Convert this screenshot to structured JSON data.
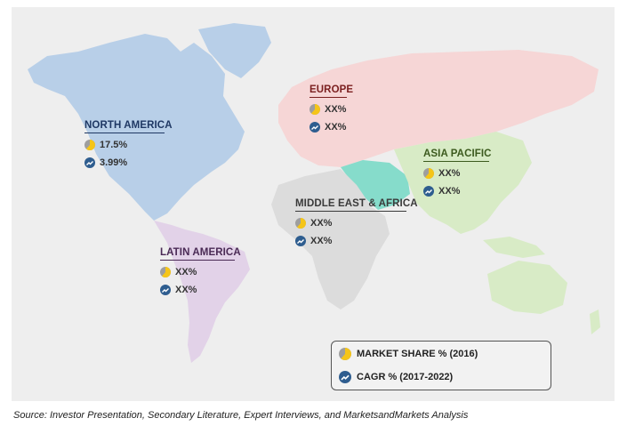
{
  "regions": [
    {
      "key": "north_america",
      "name": "NORTH AMERICA",
      "market_share": "17.5%",
      "cagr": "3.99%",
      "color": "#b8cfe8",
      "title_color": "#1f3864"
    },
    {
      "key": "europe",
      "name": "EUROPE",
      "market_share": "XX%",
      "cagr": "XX%",
      "color": "#f6d6d6",
      "title_color": "#7b1f1f"
    },
    {
      "key": "asia_pacific",
      "name": "ASIA PACIFIC",
      "market_share": "XX%",
      "cagr": "XX%",
      "color": "#d8ebc6",
      "title_color": "#3c5a1e"
    },
    {
      "key": "middle_east_africa",
      "name": "MIDDLE EAST & AFRICA",
      "market_share": "XX%",
      "cagr": "XX%",
      "color": "#dcdcdc",
      "title_color": "#3a3a3a"
    },
    {
      "key": "latin_america",
      "name": "LATIN AMERICA",
      "market_share": "XX%",
      "cagr": "XX%",
      "color": "#e2d2e8",
      "title_color": "#4a2a55"
    }
  ],
  "highlight_color_middle_east": "#86dccb",
  "legend": {
    "market_share_label": "MARKET SHARE % (2016)",
    "cagr_label": "CAGR % (2017-2022)",
    "market_share_icon": "pie-icon",
    "cagr_icon": "growth-arrow-icon",
    "market_share_colors": [
      "#f5c518",
      "#9e9e9e"
    ],
    "cagr_colors": [
      "#2e5d8f",
      "#ffffff"
    ]
  },
  "source": "Source: Investor Presentation, Secondary Literature, Expert Interviews, and MarketsandMarkets Analysis"
}
